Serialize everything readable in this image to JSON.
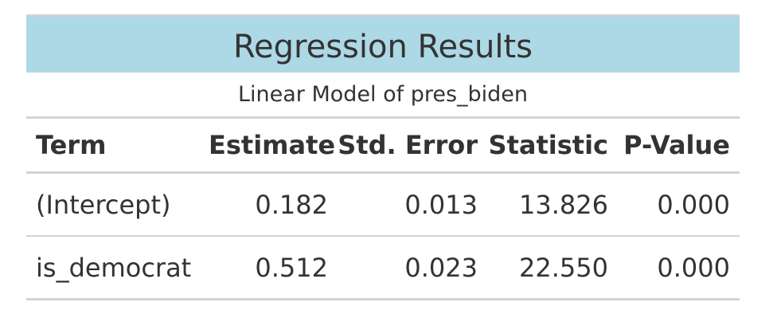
{
  "table": {
    "title": "Regression Results",
    "subtitle": "Linear Model of pres_biden",
    "headers": {
      "term": "Term",
      "estimate": "Estimate",
      "std_error": "Std. Error",
      "statistic": "Statistic",
      "p_value": "P-Value"
    },
    "rows": [
      {
        "term": "(Intercept)",
        "estimate": "0.182",
        "std_error": "0.013",
        "statistic": "13.826",
        "p_value": "0.000"
      },
      {
        "term": "is_democrat",
        "estimate": "0.512",
        "std_error": "0.023",
        "statistic": "22.550",
        "p_value": "0.000"
      }
    ]
  },
  "colors": {
    "title_background": "#add8e6",
    "rule": "#d3d3d3",
    "text": "#333333"
  }
}
